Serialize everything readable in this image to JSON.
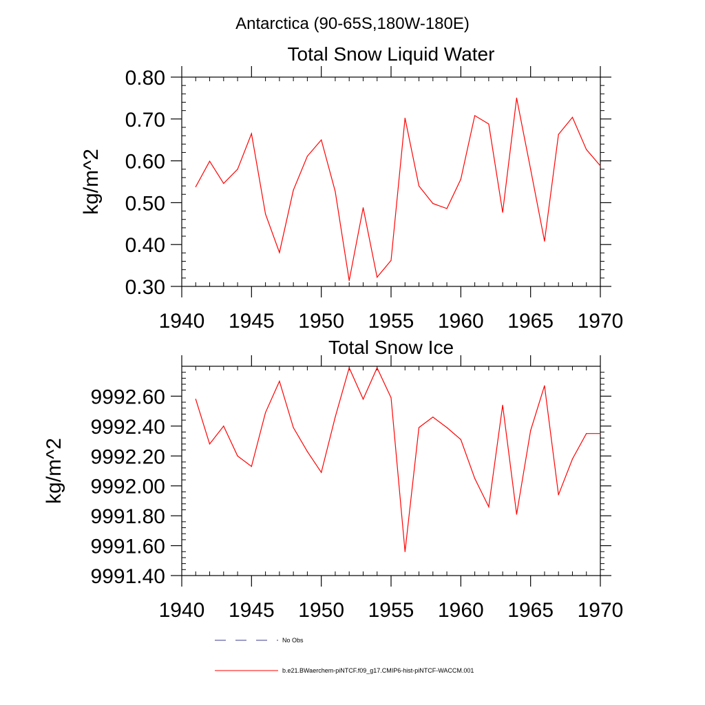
{
  "figure": {
    "region_title": "Antarctica (90-65S,180W-180E)",
    "line_color": "#ff0000",
    "axis_color": "#000000"
  },
  "chart_data": [
    {
      "type": "line",
      "title": "Total Snow Liquid Water",
      "ylabel": "kg/m^2",
      "xlabel": "",
      "xlim": [
        1940,
        1970
      ],
      "ylim": [
        0.3,
        0.8
      ],
      "xticks": [
        1940,
        1945,
        1950,
        1955,
        1960,
        1965,
        1970
      ],
      "xtick_labels": [
        "1940",
        "1945",
        "1950",
        "1955",
        "1960",
        "1965",
        "1970"
      ],
      "yticks": [
        0.3,
        0.4,
        0.5,
        0.6,
        0.7,
        0.8
      ],
      "ytick_labels": [
        "0.30",
        "0.40",
        "0.50",
        "0.60",
        "0.70",
        "0.80"
      ],
      "grid": false,
      "series": [
        {
          "color": "#ff0000",
          "x": [
            1941,
            1942,
            1943,
            1944,
            1945,
            1946,
            1947,
            1948,
            1949,
            1950,
            1951,
            1952,
            1953,
            1954,
            1955,
            1956,
            1957,
            1958,
            1959,
            1960,
            1961,
            1962,
            1963,
            1964,
            1965,
            1966,
            1967,
            1968,
            1969,
            1970
          ],
          "y": [
            0.538,
            0.599,
            0.546,
            0.58,
            0.665,
            0.473,
            0.381,
            0.53,
            0.611,
            0.65,
            0.527,
            0.314,
            0.488,
            0.322,
            0.362,
            0.702,
            0.54,
            0.498,
            0.486,
            0.556,
            0.708,
            0.688,
            0.477,
            0.75,
            0.58,
            0.408,
            0.663,
            0.704,
            0.627,
            0.588
          ]
        }
      ]
    },
    {
      "type": "line",
      "title": "Total Snow Ice",
      "ylabel": "kg/m^2",
      "xlabel": "",
      "xlim": [
        1940,
        1970
      ],
      "ylim": [
        9991.4,
        9992.8
      ],
      "xticks": [
        1940,
        1945,
        1950,
        1955,
        1960,
        1965,
        1970
      ],
      "xtick_labels": [
        "1940",
        "1945",
        "1950",
        "1955",
        "1960",
        "1965",
        "1970"
      ],
      "yticks": [
        9991.4,
        9991.6,
        9991.8,
        9992.0,
        9992.2,
        9992.4,
        9992.6
      ],
      "ytick_labels": [
        "9991.40",
        "9991.60",
        "9991.80",
        "9992.00",
        "9992.20",
        "9992.40",
        "9992.60"
      ],
      "grid": false,
      "series": [
        {
          "color": "#ff0000",
          "x": [
            1941,
            1942,
            1943,
            1944,
            1945,
            1946,
            1947,
            1948,
            1949,
            1950,
            1951,
            1952,
            1953,
            1954,
            1955,
            1956,
            1957,
            1958,
            1959,
            1960,
            1961,
            1962,
            1963,
            1964,
            1965,
            1966,
            1967,
            1968,
            1969,
            1970
          ],
          "y": [
            9992.58,
            9992.28,
            9992.4,
            9992.2,
            9992.13,
            9992.49,
            9992.7,
            9992.39,
            9992.23,
            9992.09,
            9992.46,
            9992.79,
            9992.58,
            9992.79,
            9992.59,
            9991.56,
            9992.39,
            9992.46,
            9992.39,
            9992.31,
            9992.05,
            9991.86,
            9992.54,
            9991.81,
            9992.37,
            9992.67,
            9991.94,
            9992.18,
            9992.35,
            9992.35
          ]
        }
      ]
    }
  ],
  "legend": {
    "placement": "bottom",
    "items": [
      {
        "label": "No Obs",
        "style": "dashed",
        "color": "#3a3a8c"
      },
      {
        "label": "b.e21.BWaerchem-piNTCF.f09_g17.CMIP6-hist-piNTCF-WACCM.001",
        "style": "solid",
        "color": "#ff0000"
      }
    ]
  }
}
